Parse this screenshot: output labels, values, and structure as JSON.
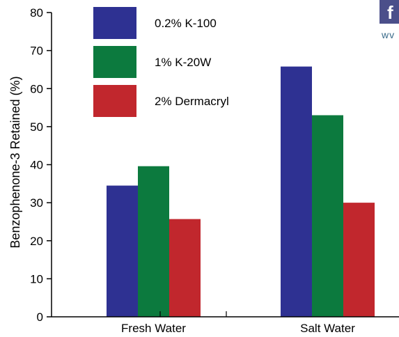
{
  "chart_data": {
    "type": "bar",
    "title": "",
    "xlabel": "",
    "ylabel": "Benzophenone-3 Retained (%)",
    "categories": [
      "Fresh Water",
      "Salt Water"
    ],
    "series": [
      {
        "name": "0.2% K-100",
        "color": "#2e3192",
        "values": [
          34.5,
          65.8
        ]
      },
      {
        "name": "1% K-20W",
        "color": "#0c7a3e",
        "values": [
          39.6,
          53.0
        ]
      },
      {
        "name": "2% Dermacryl",
        "color": "#c1272d",
        "values": [
          25.7,
          30.0
        ]
      }
    ],
    "ylim": [
      0,
      80
    ],
    "yticks": [
      "0",
      "10",
      "20",
      "30",
      "40",
      "50",
      "60",
      "70",
      "80"
    ],
    "grid": false,
    "legend_position": "top-left"
  },
  "watermark": {
    "box_text": "f",
    "box_color": "#4b4f8a",
    "text": "wv"
  }
}
